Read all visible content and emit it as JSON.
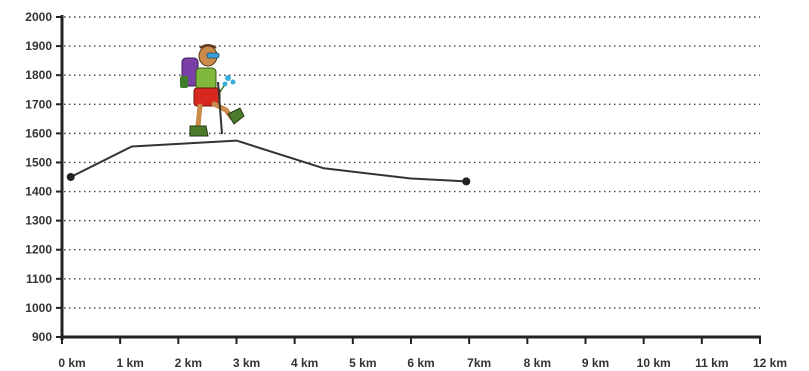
{
  "chart_data": {
    "type": "line",
    "title": "",
    "xlabel": "",
    "ylabel": "",
    "xlim": [
      0,
      12
    ],
    "ylim": [
      900,
      2000
    ],
    "x_ticks": [
      0,
      1,
      2,
      3,
      4,
      5,
      6,
      7,
      8,
      9,
      10,
      11,
      12
    ],
    "x_tick_labels": [
      "0 km",
      "1 km",
      "2 km",
      "3 km",
      "4 km",
      "5 km",
      "6 km",
      "7km",
      "8 km",
      "9 km",
      "10 km",
      "11 km",
      "12 km"
    ],
    "y_ticks": [
      900,
      1000,
      1100,
      1200,
      1300,
      1400,
      1500,
      1600,
      1700,
      1800,
      1900,
      2000
    ],
    "y_tick_labels": [
      "900",
      "1000",
      "1100",
      "1200",
      "1300",
      "1400",
      "1500",
      "1600",
      "1700",
      "1800",
      "1900",
      "2000"
    ],
    "grid": "horizontal dotted",
    "series": [
      {
        "x": [
          0.15,
          1.2,
          3.0,
          4.5,
          6.0,
          6.95
        ],
        "y": [
          1450,
          1555,
          1575,
          1480,
          1445,
          1435
        ],
        "color": "#333333"
      }
    ],
    "endpoints": [
      {
        "x": 0.15,
        "y": 1450
      },
      {
        "x": 6.95,
        "y": 1435
      }
    ],
    "decoration": "hiker-illustration"
  }
}
